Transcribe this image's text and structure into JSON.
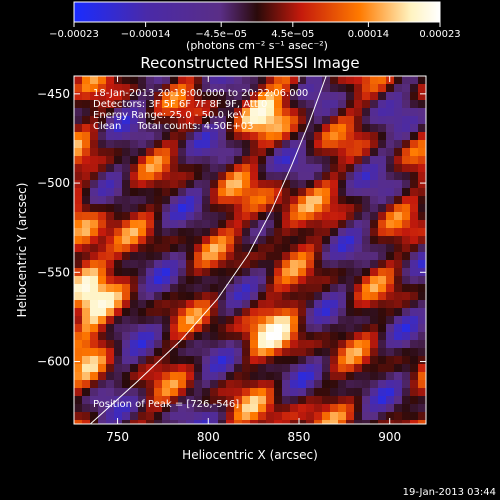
{
  "chart_data": {
    "type": "heatmap",
    "title": "Reconstructed RHESSI Image",
    "xlabel": "Heliocentric X (arcsec)",
    "ylabel": "Heliocentric Y (arcsec)",
    "xlim": [
      726,
      920
    ],
    "ylim": [
      -635,
      -440
    ],
    "x_ticks": [
      750,
      800,
      850,
      900
    ],
    "y_ticks": [
      -450,
      -500,
      -550,
      -600
    ],
    "x_tick_labels": [
      "750",
      "800",
      "850",
      "900"
    ],
    "y_tick_labels": [
      "−450",
      "−500",
      "−550",
      "−600"
    ],
    "colorbar": {
      "tick_values": [
        -0.00023,
        -0.00014,
        -4.5e-05,
        4.5e-05,
        0.00014,
        0.00023
      ],
      "tick_labels": [
        "−0.00023",
        "−0.00014",
        "−4.5e−05",
        "4.5e−05",
        "0.00014",
        "0.00023"
      ],
      "range": [
        -0.00023,
        0.00023
      ],
      "unit_label": "(photons cm⁻² s⁻¹ asec⁻²)",
      "colors": [
        "#1a2cff",
        "#4a2aa8",
        "#5a2e86",
        "#2a0a0a",
        "#c41a0c",
        "#ff7a00",
        "#fff3c0",
        "#ffffff"
      ]
    },
    "annotations": [
      "18-Jan-2013 20:19:00.000 to 20:22:06.000",
      "Detectors: 3F 5F 6F 7F 8F 9F, Att 0",
      "Energy Range: 25.0 - 50.0 keV",
      "Clean     Total counts: 4.50E+03"
    ],
    "peak_label": "Position of Peak = [726,-546]",
    "peak": [
      726,
      -546
    ],
    "limb_points": [
      [
        735,
        -635
      ],
      [
        760,
        -612
      ],
      [
        785,
        -588
      ],
      [
        805,
        -565
      ],
      [
        822,
        -540
      ],
      [
        835,
        -515
      ],
      [
        846,
        -490
      ],
      [
        856,
        -465
      ],
      [
        865,
        -440
      ]
    ],
    "timestamp": "19-Jan-2013 03:44"
  }
}
